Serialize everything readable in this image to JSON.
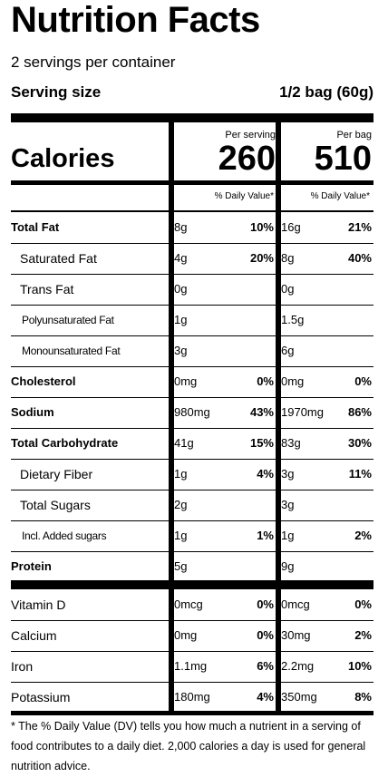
{
  "title": "Nutrition Facts",
  "servings_per_container": "2 servings per container",
  "serving_size_label": "Serving size",
  "serving_size_value": "1/2 bag (60g)",
  "calories_label": "Calories",
  "col1_header": "Per serving",
  "col1_calories": "260",
  "col2_header": "Per bag",
  "col2_calories": "510",
  "dv_header": "% Daily Value*",
  "nutrients": [
    {
      "name": "Total Fat",
      "bold": true,
      "indent": 0,
      "s_amt": "8g",
      "s_pct": "10%",
      "b_amt": "16g",
      "b_pct": "21%"
    },
    {
      "name": "Saturated Fat",
      "bold": false,
      "indent": 1,
      "s_amt": "4g",
      "s_pct": "20%",
      "b_amt": "8g",
      "b_pct": "40%"
    },
    {
      "name": "Trans Fat",
      "bold": false,
      "indent": 1,
      "s_amt": "0g",
      "s_pct": "",
      "b_amt": "0g",
      "b_pct": ""
    },
    {
      "name": "Polyunsaturated Fat",
      "bold": false,
      "indent": 2,
      "s_amt": "1g",
      "s_pct": "",
      "b_amt": "1.5g",
      "b_pct": ""
    },
    {
      "name": "Monounsaturated Fat",
      "bold": false,
      "indent": 2,
      "s_amt": "3g",
      "s_pct": "",
      "b_amt": "6g",
      "b_pct": ""
    },
    {
      "name": "Cholesterol",
      "bold": true,
      "indent": 0,
      "s_amt": "0mg",
      "s_pct": "0%",
      "b_amt": "0mg",
      "b_pct": "0%"
    },
    {
      "name": "Sodium",
      "bold": true,
      "indent": 0,
      "s_amt": "980mg",
      "s_pct": "43%",
      "b_amt": "1970mg",
      "b_pct": "86%"
    },
    {
      "name": "Total Carbohydrate",
      "bold": true,
      "indent": 0,
      "s_amt": "41g",
      "s_pct": "15%",
      "b_amt": "83g",
      "b_pct": "30%"
    },
    {
      "name": "Dietary Fiber",
      "bold": false,
      "indent": 1,
      "s_amt": "1g",
      "s_pct": "4%",
      "b_amt": "3g",
      "b_pct": "11%"
    },
    {
      "name": "Total Sugars",
      "bold": false,
      "indent": 1,
      "s_amt": "2g",
      "s_pct": "",
      "b_amt": "3g",
      "b_pct": ""
    },
    {
      "name": "Incl. Added sugars",
      "bold": false,
      "indent": 2,
      "s_amt": "1g",
      "s_pct": "1%",
      "b_amt": "1g",
      "b_pct": "2%"
    },
    {
      "name": "Protein",
      "bold": true,
      "indent": 0,
      "s_amt": "5g",
      "s_pct": "",
      "b_amt": "9g",
      "b_pct": ""
    }
  ],
  "vitamins": [
    {
      "name": "Vitamin D",
      "s_amt": "0mcg",
      "s_pct": "0%",
      "b_amt": "0mcg",
      "b_pct": "0%"
    },
    {
      "name": "Calcium",
      "s_amt": "0mg",
      "s_pct": "0%",
      "b_amt": "30mg",
      "b_pct": "2%"
    },
    {
      "name": "Iron",
      "s_amt": "1.1mg",
      "s_pct": "6%",
      "b_amt": "2.2mg",
      "b_pct": "10%"
    },
    {
      "name": "Potassium",
      "s_amt": "180mg",
      "s_pct": "4%",
      "b_amt": "350mg",
      "b_pct": "8%"
    }
  ],
  "footnote": "* The % Daily Value (DV) tells you how much a nutrient in a serving of food contributes to a daily diet. 2,000 calories a day is used for general nutrition advice."
}
